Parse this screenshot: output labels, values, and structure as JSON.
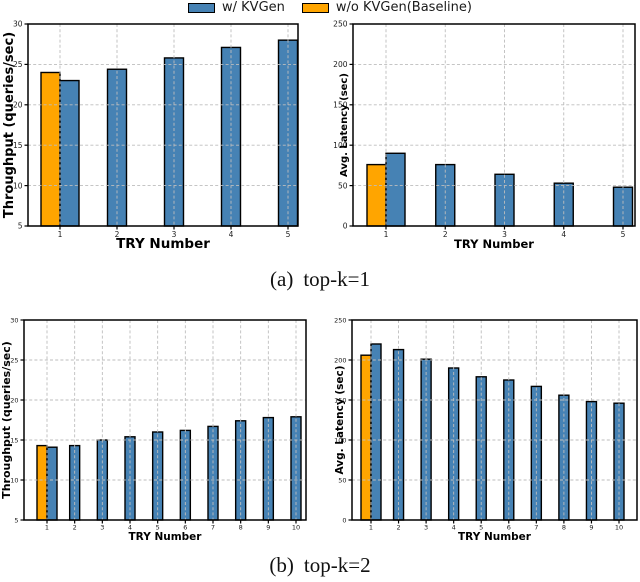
{
  "legend": {
    "items": [
      {
        "key": "kvgen",
        "label": "w/ KVGen",
        "color": "#4682B4"
      },
      {
        "key": "baseline",
        "label": "w/o KVGen(Baseline)",
        "color": "#FFA500"
      }
    ]
  },
  "captions": {
    "a_prefix": "(a)",
    "a_text": "top-k=1",
    "b_prefix": "(b)",
    "b_text": "top-k=2"
  },
  "chart_data": [
    {
      "id": "throughput-topk1",
      "type": "bar",
      "title": "",
      "xlabel": "TRY Number",
      "ylabel": "Throughput (queries/sec)",
      "ylim": [
        5,
        30
      ],
      "yticks": [
        5,
        10,
        15,
        20,
        25,
        30
      ],
      "categories": [
        "1",
        "2",
        "3",
        "4",
        "5"
      ],
      "grid": true,
      "series": [
        {
          "key": "baseline",
          "name": "w/o KVGen(Baseline)",
          "color": "#FFA500",
          "values": [
            24,
            null,
            null,
            null,
            null
          ]
        },
        {
          "key": "kvgen",
          "name": "w/ KVGen",
          "color": "#4682B4",
          "values": [
            23,
            24.4,
            25.8,
            27.1,
            28
          ]
        }
      ]
    },
    {
      "id": "latency-topk1",
      "type": "bar",
      "title": "",
      "xlabel": "TRY Number",
      "ylabel": "Avg. Latency (sec)",
      "ylim": [
        0,
        250
      ],
      "yticks": [
        0,
        50,
        100,
        150,
        200,
        250
      ],
      "categories": [
        "1",
        "2",
        "3",
        "4",
        "5"
      ],
      "grid": true,
      "series": [
        {
          "key": "baseline",
          "name": "w/o KVGen(Baseline)",
          "color": "#FFA500",
          "values": [
            76,
            null,
            null,
            null,
            null
          ]
        },
        {
          "key": "kvgen",
          "name": "w/ KVGen",
          "color": "#4682B4",
          "values": [
            90,
            76,
            64,
            53,
            48
          ]
        }
      ]
    },
    {
      "id": "throughput-topk2",
      "type": "bar",
      "title": "",
      "xlabel": "TRY Number",
      "ylabel": "Throughput (queries/sec)",
      "ylim": [
        5,
        30
      ],
      "yticks": [
        5,
        10,
        15,
        20,
        25,
        30
      ],
      "categories": [
        "1",
        "2",
        "3",
        "4",
        "5",
        "6",
        "7",
        "8",
        "9",
        "10"
      ],
      "grid": true,
      "series": [
        {
          "key": "baseline",
          "name": "w/o KVGen(Baseline)",
          "color": "#FFA500",
          "values": [
            14.3,
            null,
            null,
            null,
            null,
            null,
            null,
            null,
            null,
            null
          ]
        },
        {
          "key": "kvgen",
          "name": "w/ KVGen",
          "color": "#4682B4",
          "values": [
            14.1,
            14.3,
            15.0,
            15.4,
            16.0,
            16.2,
            16.7,
            17.4,
            17.8,
            17.9
          ]
        }
      ]
    },
    {
      "id": "latency-topk2",
      "type": "bar",
      "title": "",
      "xlabel": "TRY Number",
      "ylabel": "Avg. Latency (sec)",
      "ylim": [
        0,
        250
      ],
      "yticks": [
        0,
        50,
        100,
        150,
        200,
        250
      ],
      "categories": [
        "1",
        "2",
        "3",
        "4",
        "5",
        "6",
        "7",
        "8",
        "9",
        "10"
      ],
      "grid": true,
      "series": [
        {
          "key": "baseline",
          "name": "w/o KVGen(Baseline)",
          "color": "#FFA500",
          "values": [
            206,
            null,
            null,
            null,
            null,
            null,
            null,
            null,
            null,
            null
          ]
        },
        {
          "key": "kvgen",
          "name": "w/ KVGen",
          "color": "#4682B4",
          "values": [
            220,
            213,
            201,
            190,
            179,
            175,
            167,
            156,
            148,
            146
          ]
        }
      ]
    }
  ]
}
